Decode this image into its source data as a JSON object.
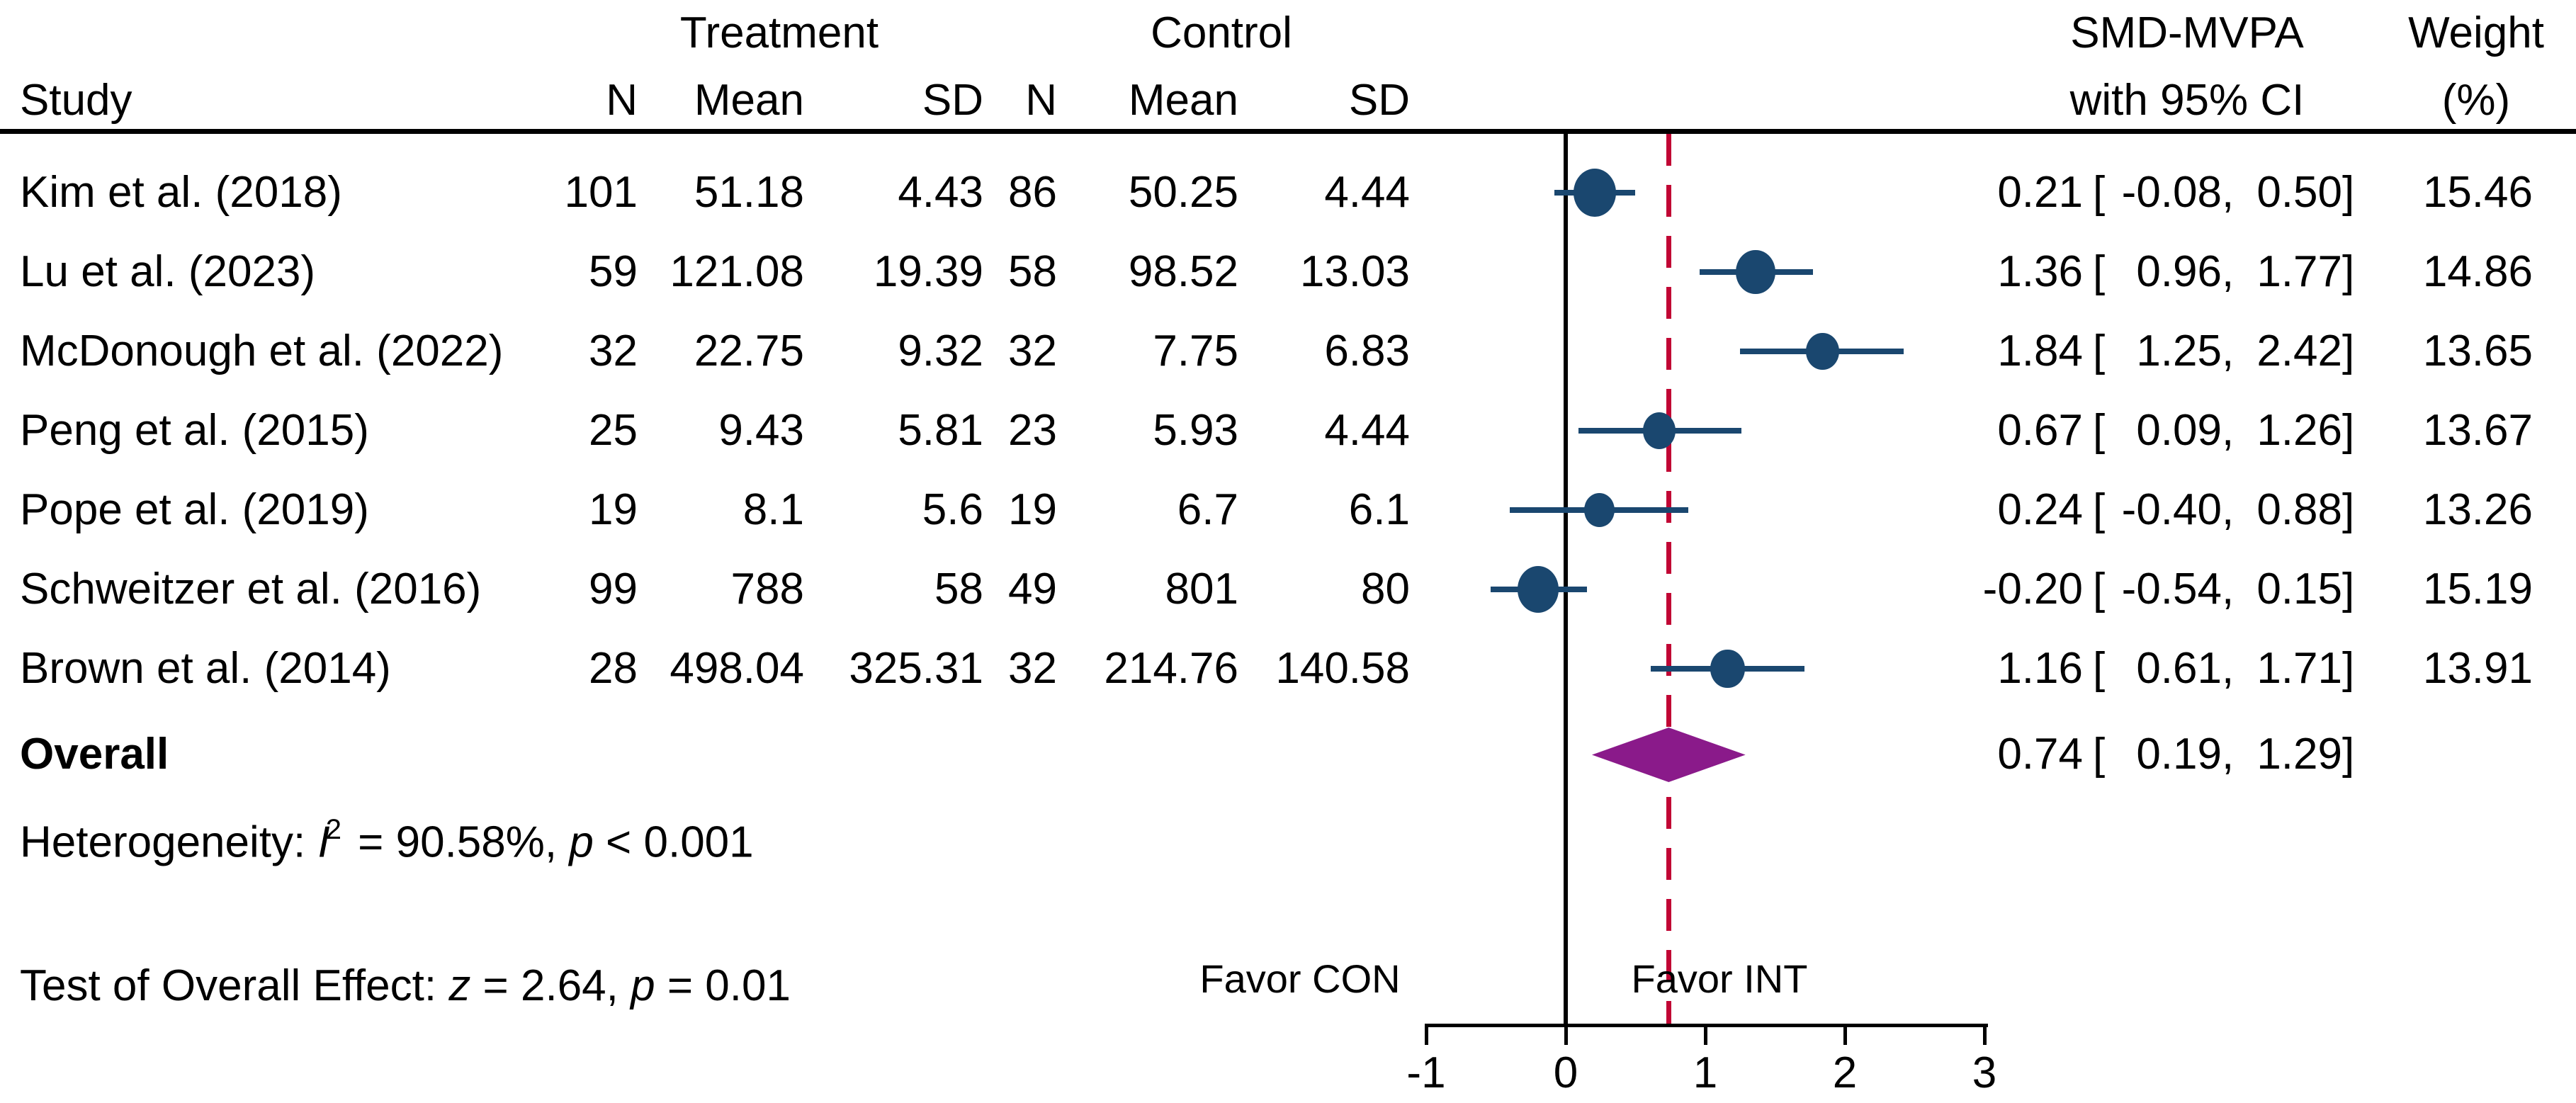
{
  "chart_data": {
    "type": "scatter",
    "subtype": "forest-plot",
    "title": "",
    "columns": {
      "study": "Study",
      "treatment_group": "Treatment",
      "control_group": "Control",
      "n": "N",
      "mean": "Mean",
      "sd": "SD",
      "effect_header_line1": "SMD-MVPA",
      "effect_header_line2": "with 95% CI",
      "weight_header_line1": "Weight",
      "weight_header_line2": "(%)"
    },
    "x_axis": {
      "range": [
        -1,
        3
      ],
      "ticks": [
        "-1",
        "0",
        "1",
        "2",
        "3"
      ],
      "tick_values": [
        -1,
        0,
        1,
        2,
        3
      ],
      "zero_line": 0,
      "pooled_effect_line": 0.74,
      "grid": false
    },
    "favor_left": "Favor CON",
    "favor_right": "Favor INT",
    "format": {
      "open": "[",
      "sep": ",",
      "close": "]"
    },
    "studies": [
      {
        "label": "Kim et al. (2018)",
        "treatment": {
          "n": "101",
          "mean": "51.18",
          "sd": "4.43"
        },
        "control": {
          "n": "86",
          "mean": "50.25",
          "sd": "4.44"
        },
        "effect": 0.21,
        "ci_low": -0.08,
        "ci_high": 0.5,
        "weight": "15.46"
      },
      {
        "label": "Lu et al. (2023)",
        "treatment": {
          "n": "59",
          "mean": "121.08",
          "sd": "19.39"
        },
        "control": {
          "n": "58",
          "mean": "98.52",
          "sd": "13.03"
        },
        "effect": 1.36,
        "ci_low": 0.96,
        "ci_high": 1.77,
        "weight": "14.86"
      },
      {
        "label": "McDonough et al. (2022)",
        "treatment": {
          "n": "32",
          "mean": "22.75",
          "sd": "9.32"
        },
        "control": {
          "n": "32",
          "mean": "7.75",
          "sd": "6.83"
        },
        "effect": 1.84,
        "ci_low": 1.25,
        "ci_high": 2.42,
        "weight": "13.65"
      },
      {
        "label": "Peng et al. (2015)",
        "treatment": {
          "n": "25",
          "mean": "9.43",
          "sd": "5.81"
        },
        "control": {
          "n": "23",
          "mean": "5.93",
          "sd": "4.44"
        },
        "effect": 0.67,
        "ci_low": 0.09,
        "ci_high": 1.26,
        "weight": "13.67"
      },
      {
        "label": "Pope et al. (2019)",
        "treatment": {
          "n": "19",
          "mean": "8.1",
          "sd": "5.6"
        },
        "control": {
          "n": "19",
          "mean": "6.7",
          "sd": "6.1"
        },
        "effect": 0.24,
        "ci_low": -0.4,
        "ci_high": 0.88,
        "weight": "13.26"
      },
      {
        "label": "Schweitzer et al. (2016)",
        "treatment": {
          "n": "99",
          "mean": "788",
          "sd": "58"
        },
        "control": {
          "n": "49",
          "mean": "801",
          "sd": "80"
        },
        "effect": -0.2,
        "ci_low": -0.54,
        "ci_high": 0.15,
        "weight": "15.19"
      },
      {
        "label": "Brown et al. (2014)",
        "treatment": {
          "n": "28",
          "mean": "498.04",
          "sd": "325.31"
        },
        "control": {
          "n": "32",
          "mean": "214.76",
          "sd": "140.58"
        },
        "effect": 1.16,
        "ci_low": 0.61,
        "ci_high": 1.71,
        "weight": "13.91"
      }
    ],
    "overall": {
      "label": "Overall",
      "effect": 0.74,
      "ci_low": 0.19,
      "ci_high": 1.29
    },
    "heterogeneity": {
      "prefix": "Heterogeneity: ",
      "stat": "I",
      "stat_sup": "2",
      "stat_value": " = 90.58%, ",
      "p": "p",
      "p_value": " < 0.001"
    },
    "overall_test": {
      "prefix": "Test of Overall Effect: ",
      "z": "z",
      "z_value": " = 2.64, ",
      "p": "p",
      "p_value": " = 0.01"
    },
    "colors": {
      "marker": "#1a476f",
      "ci_line": "#1a476f",
      "diamond": "#8a1a8a",
      "pooled_line": "#c10534",
      "axis": "#000000"
    }
  }
}
